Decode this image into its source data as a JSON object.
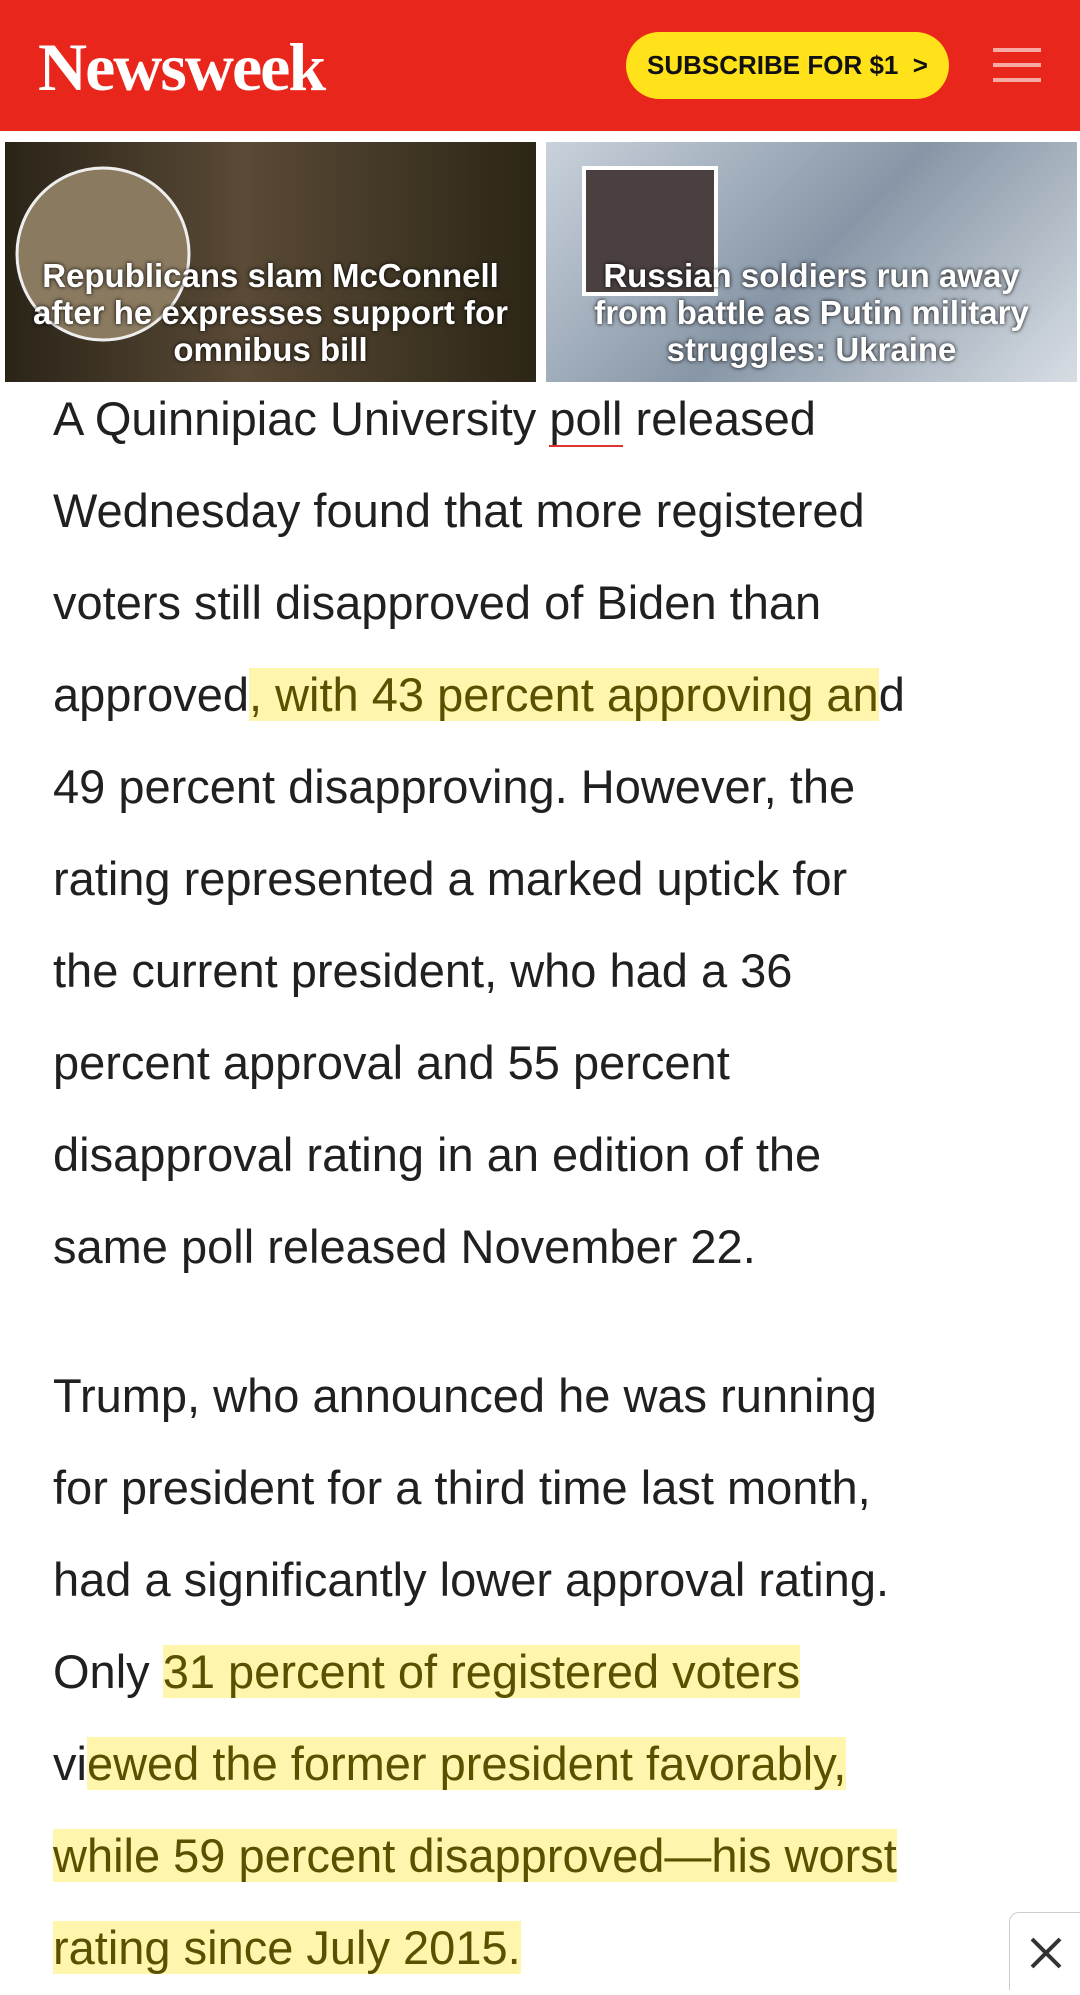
{
  "header": {
    "logo": "Newsweek",
    "subscribe": "SUBSCRIBE FOR $1  >"
  },
  "stories": [
    {
      "title": "Republicans slam McConnell after he expresses support for omnibus bill"
    },
    {
      "title": "Russian soldiers run away from battle as Putin military struggles: Ukraine"
    }
  ],
  "article": {
    "paragraphs": [
      {
        "lines": [
          [
            {
              "text": "A Quinnipiac University "
            },
            {
              "text": "poll",
              "link": true
            },
            {
              "text": " released"
            }
          ],
          [
            {
              "text": "Wednesday found that more registered"
            }
          ],
          [
            {
              "text": "voters still disapproved of Biden than"
            }
          ],
          [
            {
              "text": "approved"
            },
            {
              "text": ", with 43 percent approving an",
              "highlight": true
            },
            {
              "text": "d"
            }
          ],
          [
            {
              "text": "49 percent disapproving. However, the"
            }
          ],
          [
            {
              "text": "rating represented a marked uptick for"
            }
          ],
          [
            {
              "text": "the current president, who had a 36"
            }
          ],
          [
            {
              "text": "percent approval and 55 percent"
            }
          ],
          [
            {
              "text": "disapproval rating in an edition of the"
            }
          ],
          [
            {
              "text": "same poll released November 22."
            }
          ]
        ]
      },
      {
        "lines": [
          [
            {
              "text": "Trump, who announced he was running"
            }
          ],
          [
            {
              "text": "for president for a third time last month,"
            }
          ],
          [
            {
              "text": "had a significantly lower approval rating."
            }
          ],
          [
            {
              "text": "Only "
            },
            {
              "text": "31 percent of registered voters",
              "highlight": true
            }
          ],
          [
            {
              "text": "vi"
            },
            {
              "text": "ewed the former president favorably,",
              "highlight": true
            }
          ],
          [
            {
              "text": "while 59 percent disapproved—his worst",
              "highlight": true
            }
          ],
          [
            {
              "text": "rating since July 2015.",
              "highlight": true
            }
          ]
        ]
      }
    ]
  }
}
